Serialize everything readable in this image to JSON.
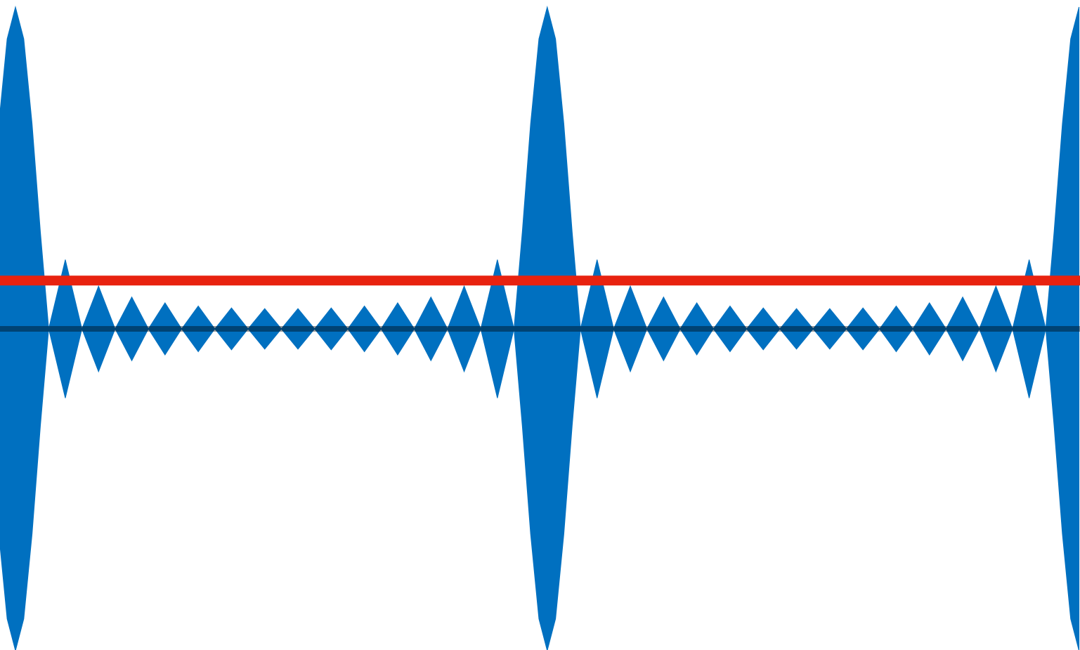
{
  "chart_data": {
    "type": "area",
    "x": [
      -1,
      -0.5,
      0,
      0.5,
      1,
      1.5,
      2,
      3,
      4,
      5,
      6,
      7,
      8,
      9,
      10,
      11,
      12,
      13,
      14,
      15,
      16,
      17,
      18,
      19,
      20,
      21,
      22,
      23,
      24,
      25,
      26,
      27,
      28,
      29,
      30,
      30.5,
      31,
      31.5,
      32,
      32.5,
      33,
      33.5,
      34,
      35,
      36,
      37,
      38,
      39,
      40,
      41,
      42,
      43,
      44,
      45,
      46,
      47,
      48,
      49,
      50,
      51,
      52,
      53,
      54,
      55,
      56,
      57,
      58,
      59,
      60,
      61,
      62,
      62.5,
      63,
      63.5,
      64
    ],
    "values": [
      0.637,
      0.901,
      1,
      0.901,
      0.637,
      0.301,
      0,
      0.215,
      0,
      0.133,
      0,
      0.099,
      0,
      0.081,
      0,
      0.071,
      0,
      0.065,
      0,
      0.063,
      0,
      0.063,
      0,
      0.065,
      0,
      0.071,
      0,
      0.081,
      0,
      0.099,
      0,
      0.133,
      0,
      0.215,
      0,
      0.301,
      0.637,
      0.901,
      1,
      0.901,
      0.637,
      0.301,
      0,
      0.215,
      0,
      0.133,
      0,
      0.099,
      0,
      0.081,
      0,
      0.071,
      0,
      0.065,
      0,
      0.063,
      0,
      0.063,
      0,
      0.065,
      0,
      0.071,
      0,
      0.081,
      0,
      0.099,
      0,
      0.133,
      0,
      0.215,
      0,
      0.301,
      0.637,
      0.901,
      1
    ],
    "color": "#0070c0",
    "xlim": [
      -0.93,
      64.06
    ],
    "ylim": [
      -1,
      1
    ],
    "zero_line": {
      "value": 0,
      "color": "#999999"
    },
    "threshold": {
      "value": 0.15,
      "color": "#e8220f"
    }
  }
}
